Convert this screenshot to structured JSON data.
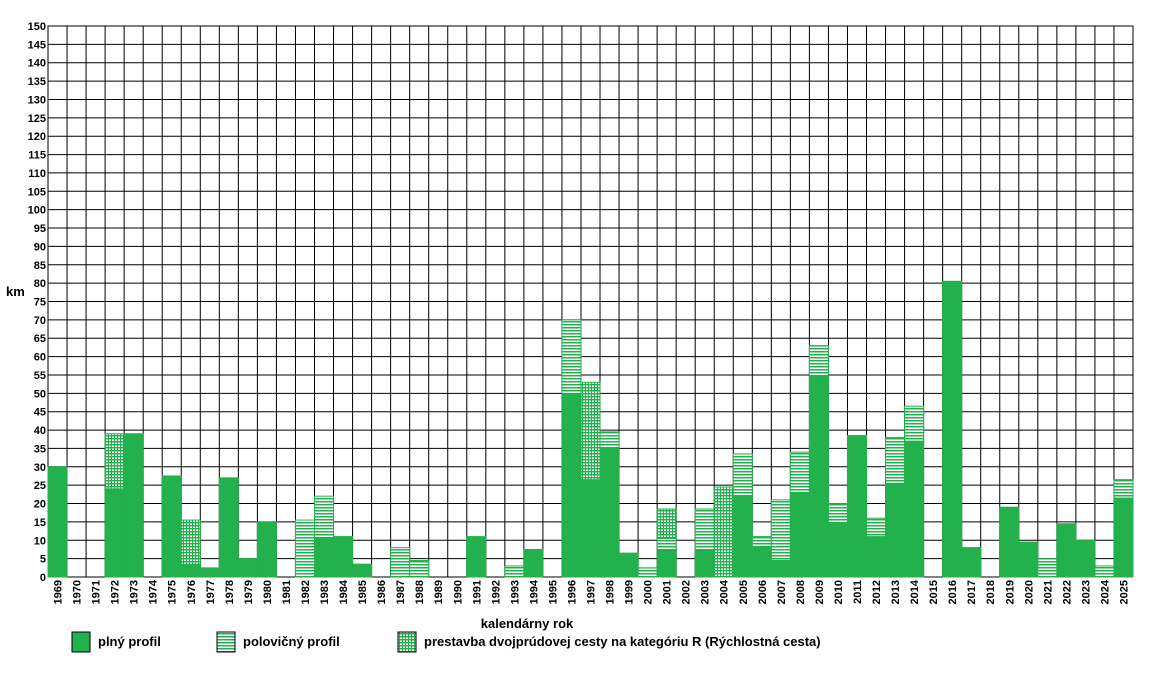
{
  "chart_data": {
    "type": "bar",
    "stacked": true,
    "title": "",
    "xlabel": "kalendárny rok",
    "ylabel": "km",
    "ylim": [
      0,
      150
    ],
    "ystep": 5,
    "grid": true,
    "legend_position": "bottom",
    "categories": [
      "1969",
      "1970",
      "1971",
      "1972",
      "1973",
      "1974",
      "1975",
      "1976",
      "1977",
      "1978",
      "1979",
      "1980",
      "1981",
      "1982",
      "1983",
      "1984",
      "1985",
      "1986",
      "1987",
      "1988",
      "1989",
      "1990",
      "1991",
      "1992",
      "1993",
      "1994",
      "1995",
      "1996",
      "1997",
      "1998",
      "1999",
      "2000",
      "2001",
      "2002",
      "2003",
      "2004",
      "2005",
      "2006",
      "2007",
      "2008",
      "2009",
      "2010",
      "2011",
      "2012",
      "2013",
      "2014",
      "2015",
      "2016",
      "2017",
      "2018",
      "2019",
      "2020",
      "2021",
      "2022",
      "2023",
      "2024",
      "2025"
    ],
    "series": [
      {
        "name": "plný profil",
        "pattern": "solid",
        "color": "#22b14c",
        "values": [
          30,
          0,
          0,
          24,
          39,
          0,
          27.5,
          3.5,
          2.5,
          27,
          5,
          15,
          0,
          0,
          10.5,
          11,
          3.5,
          0,
          0,
          0,
          0,
          0,
          11,
          0,
          0,
          7.5,
          0,
          50,
          26.5,
          35,
          6.5,
          0,
          7.5,
          0,
          7.5,
          0,
          22,
          8,
          4.5,
          23,
          54.5,
          14.5,
          38.5,
          11,
          25.5,
          37,
          0,
          80.5,
          8,
          0,
          19,
          9.5,
          0,
          14.5,
          10,
          0,
          21.5
        ]
      },
      {
        "name": "polovičný profil",
        "pattern": "horizontal",
        "color": "#22b14c",
        "values": [
          0,
          0,
          0,
          0,
          0,
          0,
          0,
          0,
          0,
          0,
          0,
          0,
          0,
          15.5,
          11.5,
          0,
          0,
          0,
          8,
          4.5,
          0,
          0,
          0,
          0,
          3,
          0,
          0,
          20,
          0,
          4.5,
          0,
          2.5,
          3,
          0,
          11,
          0,
          11.5,
          3,
          16.5,
          11,
          8.5,
          5.5,
          0,
          5,
          12.5,
          9.5,
          0,
          0,
          0,
          0,
          0,
          0,
          5,
          0,
          0,
          3,
          5
        ]
      },
      {
        "name": "prestavba dvojprúdovej cesty na kategóriu R (Rýchlostná cesta)",
        "pattern": "grid",
        "color": "#22b14c",
        "values": [
          0,
          0,
          0,
          15,
          0,
          0,
          0,
          12,
          0,
          0,
          0,
          0,
          0,
          0,
          0,
          0,
          0,
          0,
          0,
          0,
          0,
          0,
          0,
          0,
          0,
          0,
          0,
          0,
          26.5,
          0,
          0,
          0,
          8,
          0,
          0,
          24.5,
          0,
          0,
          0,
          0,
          0,
          0,
          0,
          0,
          0,
          0,
          0,
          0,
          0,
          0,
          0,
          0,
          0,
          0,
          0,
          0,
          0
        ]
      }
    ]
  }
}
